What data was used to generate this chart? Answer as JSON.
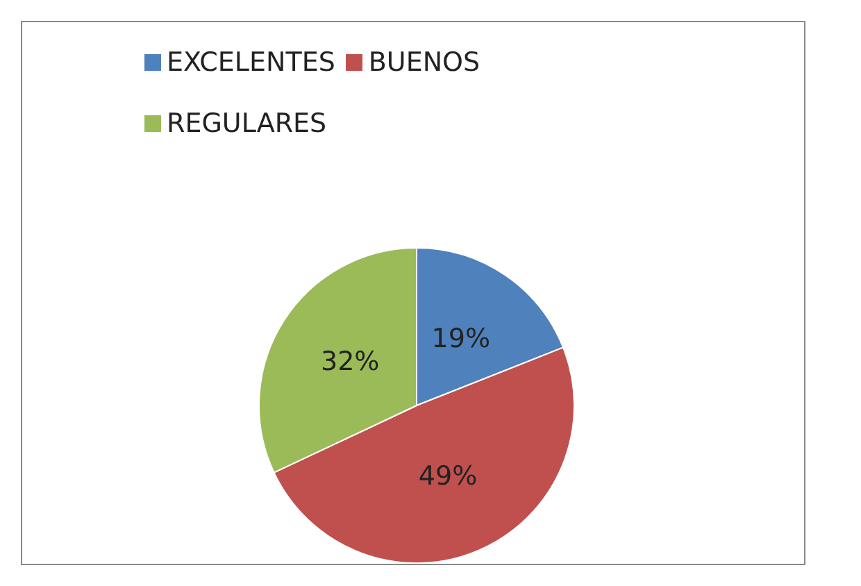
{
  "chart_data": {
    "type": "pie",
    "categories": [
      "EXCELENTES",
      "BUENOS",
      "REGULARES"
    ],
    "values": [
      19,
      49,
      32
    ],
    "colors": [
      "#4f81bd",
      "#c0504d",
      "#9bbb59"
    ],
    "value_labels": [
      "19%",
      "49%",
      "32%"
    ],
    "legend": "top left"
  }
}
